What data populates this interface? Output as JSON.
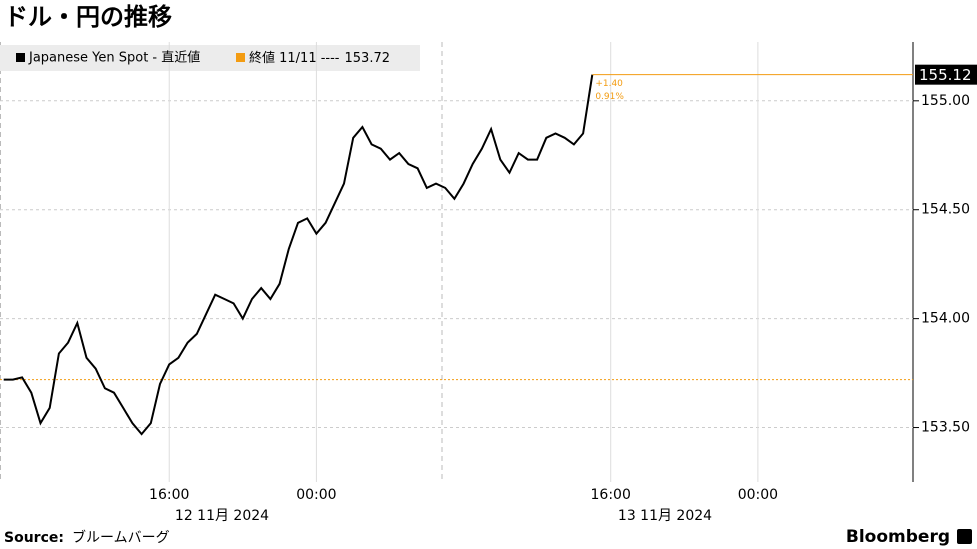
{
  "chart_data": {
    "type": "line",
    "title": "ドル・円の推移",
    "series": [
      {
        "name": "Japanese Yen Spot - 直近値",
        "color": "#000000",
        "values": [
          153.72,
          153.72,
          153.73,
          153.66,
          153.52,
          153.59,
          153.84,
          153.89,
          153.98,
          153.82,
          153.77,
          153.68,
          153.66,
          153.59,
          153.52,
          153.47,
          153.52,
          153.7,
          153.79,
          153.82,
          153.89,
          153.93,
          154.02,
          154.11,
          154.09,
          154.07,
          154.0,
          154.09,
          154.14,
          154.09,
          154.16,
          154.32,
          154.44,
          154.46,
          154.39,
          154.44,
          154.53,
          154.62,
          154.83,
          154.88,
          154.8,
          154.78,
          154.73,
          154.76,
          154.71,
          154.69,
          154.6,
          154.62,
          154.6,
          154.55,
          154.62,
          154.71,
          154.78,
          154.87,
          154.73,
          154.67,
          154.76,
          154.73,
          154.73,
          154.83,
          154.85,
          154.83,
          154.8,
          154.85,
          155.12
        ]
      }
    ],
    "x": [
      "2024-11-12 07:00",
      "2024-11-12 07:30",
      "2024-11-12 08:00",
      "2024-11-12 08:30",
      "2024-11-12 09:00",
      "2024-11-12 09:30",
      "2024-11-12 10:00",
      "2024-11-12 10:30",
      "2024-11-12 11:00",
      "2024-11-12 11:30",
      "2024-11-12 12:00",
      "2024-11-12 12:30",
      "2024-11-12 13:00",
      "2024-11-12 13:30",
      "2024-11-12 14:00",
      "2024-11-12 14:30",
      "2024-11-12 15:00",
      "2024-11-12 15:30",
      "2024-11-12 16:00",
      "2024-11-12 16:30",
      "2024-11-12 17:00",
      "2024-11-12 17:30",
      "2024-11-12 18:00",
      "2024-11-12 18:30",
      "2024-11-12 19:00",
      "2024-11-12 19:30",
      "2024-11-12 20:00",
      "2024-11-12 20:30",
      "2024-11-12 21:00",
      "2024-11-12 21:30",
      "2024-11-12 22:00",
      "2024-11-12 22:30",
      "2024-11-12 23:00",
      "2024-11-12 23:30",
      "2024-11-13 00:00",
      "2024-11-13 00:30",
      "2024-11-13 01:00",
      "2024-11-13 01:30",
      "2024-11-13 02:00",
      "2024-11-13 02:30",
      "2024-11-13 03:00",
      "2024-11-13 03:30",
      "2024-11-13 04:00",
      "2024-11-13 04:30",
      "2024-11-13 05:00",
      "2024-11-13 05:30",
      "2024-11-13 06:00",
      "2024-11-13 06:30",
      "2024-11-13 07:00",
      "2024-11-13 07:30",
      "2024-11-13 08:00",
      "2024-11-13 08:30",
      "2024-11-13 09:00",
      "2024-11-13 09:30",
      "2024-11-13 10:00",
      "2024-11-13 10:30",
      "2024-11-13 11:00",
      "2024-11-13 11:30",
      "2024-11-13 12:00",
      "2024-11-13 12:30",
      "2024-11-13 13:00",
      "2024-11-13 13:30",
      "2024-11-13 14:00",
      "2024-11-13 14:30",
      "2024-11-13 15:00"
    ],
    "xlim": [
      "2024-11-12 06:48",
      "2024-11-14 08:26"
    ],
    "xticks": [
      {
        "value": "2024-11-12 16:00",
        "label": "16:00"
      },
      {
        "value": "2024-11-13 00:00",
        "label": "00:00"
      },
      {
        "value": "2024-11-13 16:00",
        "label": "16:00"
      },
      {
        "value": "2024-11-14 00:00",
        "label": "00:00"
      }
    ],
    "date_labels": [
      "12 11月 2024",
      "13 11月 2024"
    ],
    "ylim": [
      153.25,
      155.27
    ],
    "yticks": [
      {
        "value": 153.5,
        "label": "153.50"
      },
      {
        "value": 154,
        "label": "154.00"
      },
      {
        "value": 154.5,
        "label": "154.50"
      },
      {
        "value": 155,
        "label": "155.00"
      }
    ],
    "reference": {
      "name": "終値 11/11 ----",
      "value": 153.72,
      "color": "#f39c12"
    },
    "annotations": [
      "+1.40",
      "0.91%"
    ],
    "grid": true,
    "source_label": "Source:",
    "source": "ブルームバーグ",
    "brand": "Bloomberg"
  }
}
